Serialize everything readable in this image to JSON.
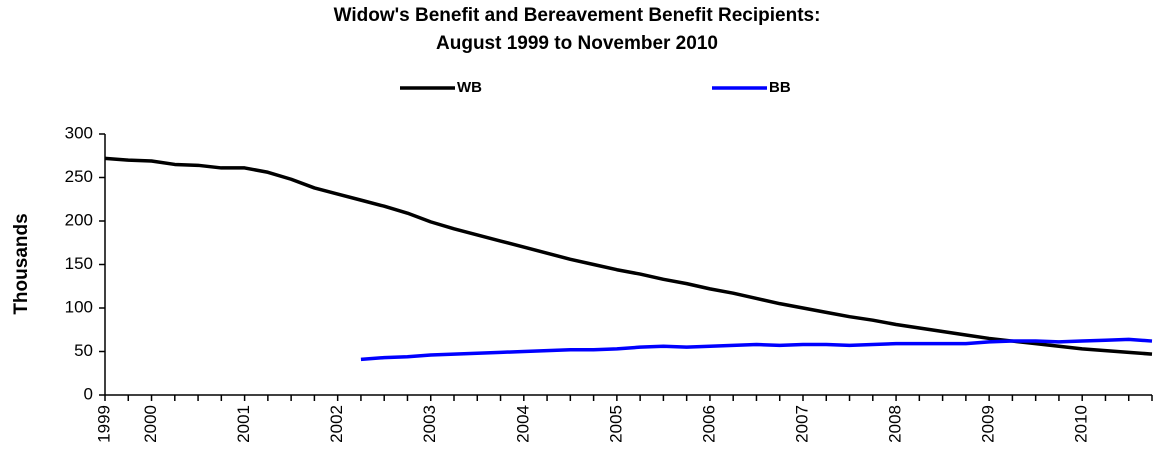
{
  "chart_data": {
    "type": "line",
    "title": [
      "Widow's Benefit and Bereavement Benefit Recipients:",
      "August 1999 to November 2010"
    ],
    "y_label": "Thousands",
    "categories": [
      "1999",
      null,
      "2000",
      null,
      null,
      null,
      "2001",
      null,
      null,
      null,
      "2002",
      null,
      null,
      null,
      "2003",
      null,
      null,
      null,
      "2004",
      null,
      null,
      null,
      "2005",
      null,
      null,
      null,
      "2006",
      null,
      null,
      null,
      "2007",
      null,
      null,
      null,
      "2008",
      null,
      null,
      null,
      "2009",
      null,
      null,
      null,
      "2010",
      null,
      null,
      null
    ],
    "series": [
      {
        "name": "WB",
        "color": "#000000",
        "values": [
          272,
          270,
          269,
          265,
          264,
          261,
          261,
          256,
          248,
          238,
          231,
          224,
          217,
          209,
          199,
          191,
          184,
          177,
          170,
          163,
          156,
          150,
          144,
          139,
          133,
          128,
          122,
          117,
          111,
          105,
          100,
          95,
          90,
          86,
          81,
          77,
          73,
          69,
          65,
          62,
          59,
          56,
          53,
          51,
          49,
          47
        ]
      },
      {
        "name": "BB",
        "color": "#0000ff",
        "values": [
          null,
          null,
          null,
          null,
          null,
          null,
          null,
          null,
          null,
          null,
          null,
          41,
          43,
          44,
          46,
          47,
          48,
          49,
          50,
          51,
          52,
          52,
          53,
          55,
          56,
          55,
          56,
          57,
          58,
          57,
          58,
          58,
          57,
          58,
          59,
          59,
          59,
          59,
          61,
          62,
          62,
          61,
          62,
          63,
          64,
          62
        ]
      }
    ],
    "ylim": [
      0,
      300
    ],
    "yticks": [
      0,
      50,
      100,
      150,
      200,
      250,
      300
    ],
    "grid": false
  }
}
